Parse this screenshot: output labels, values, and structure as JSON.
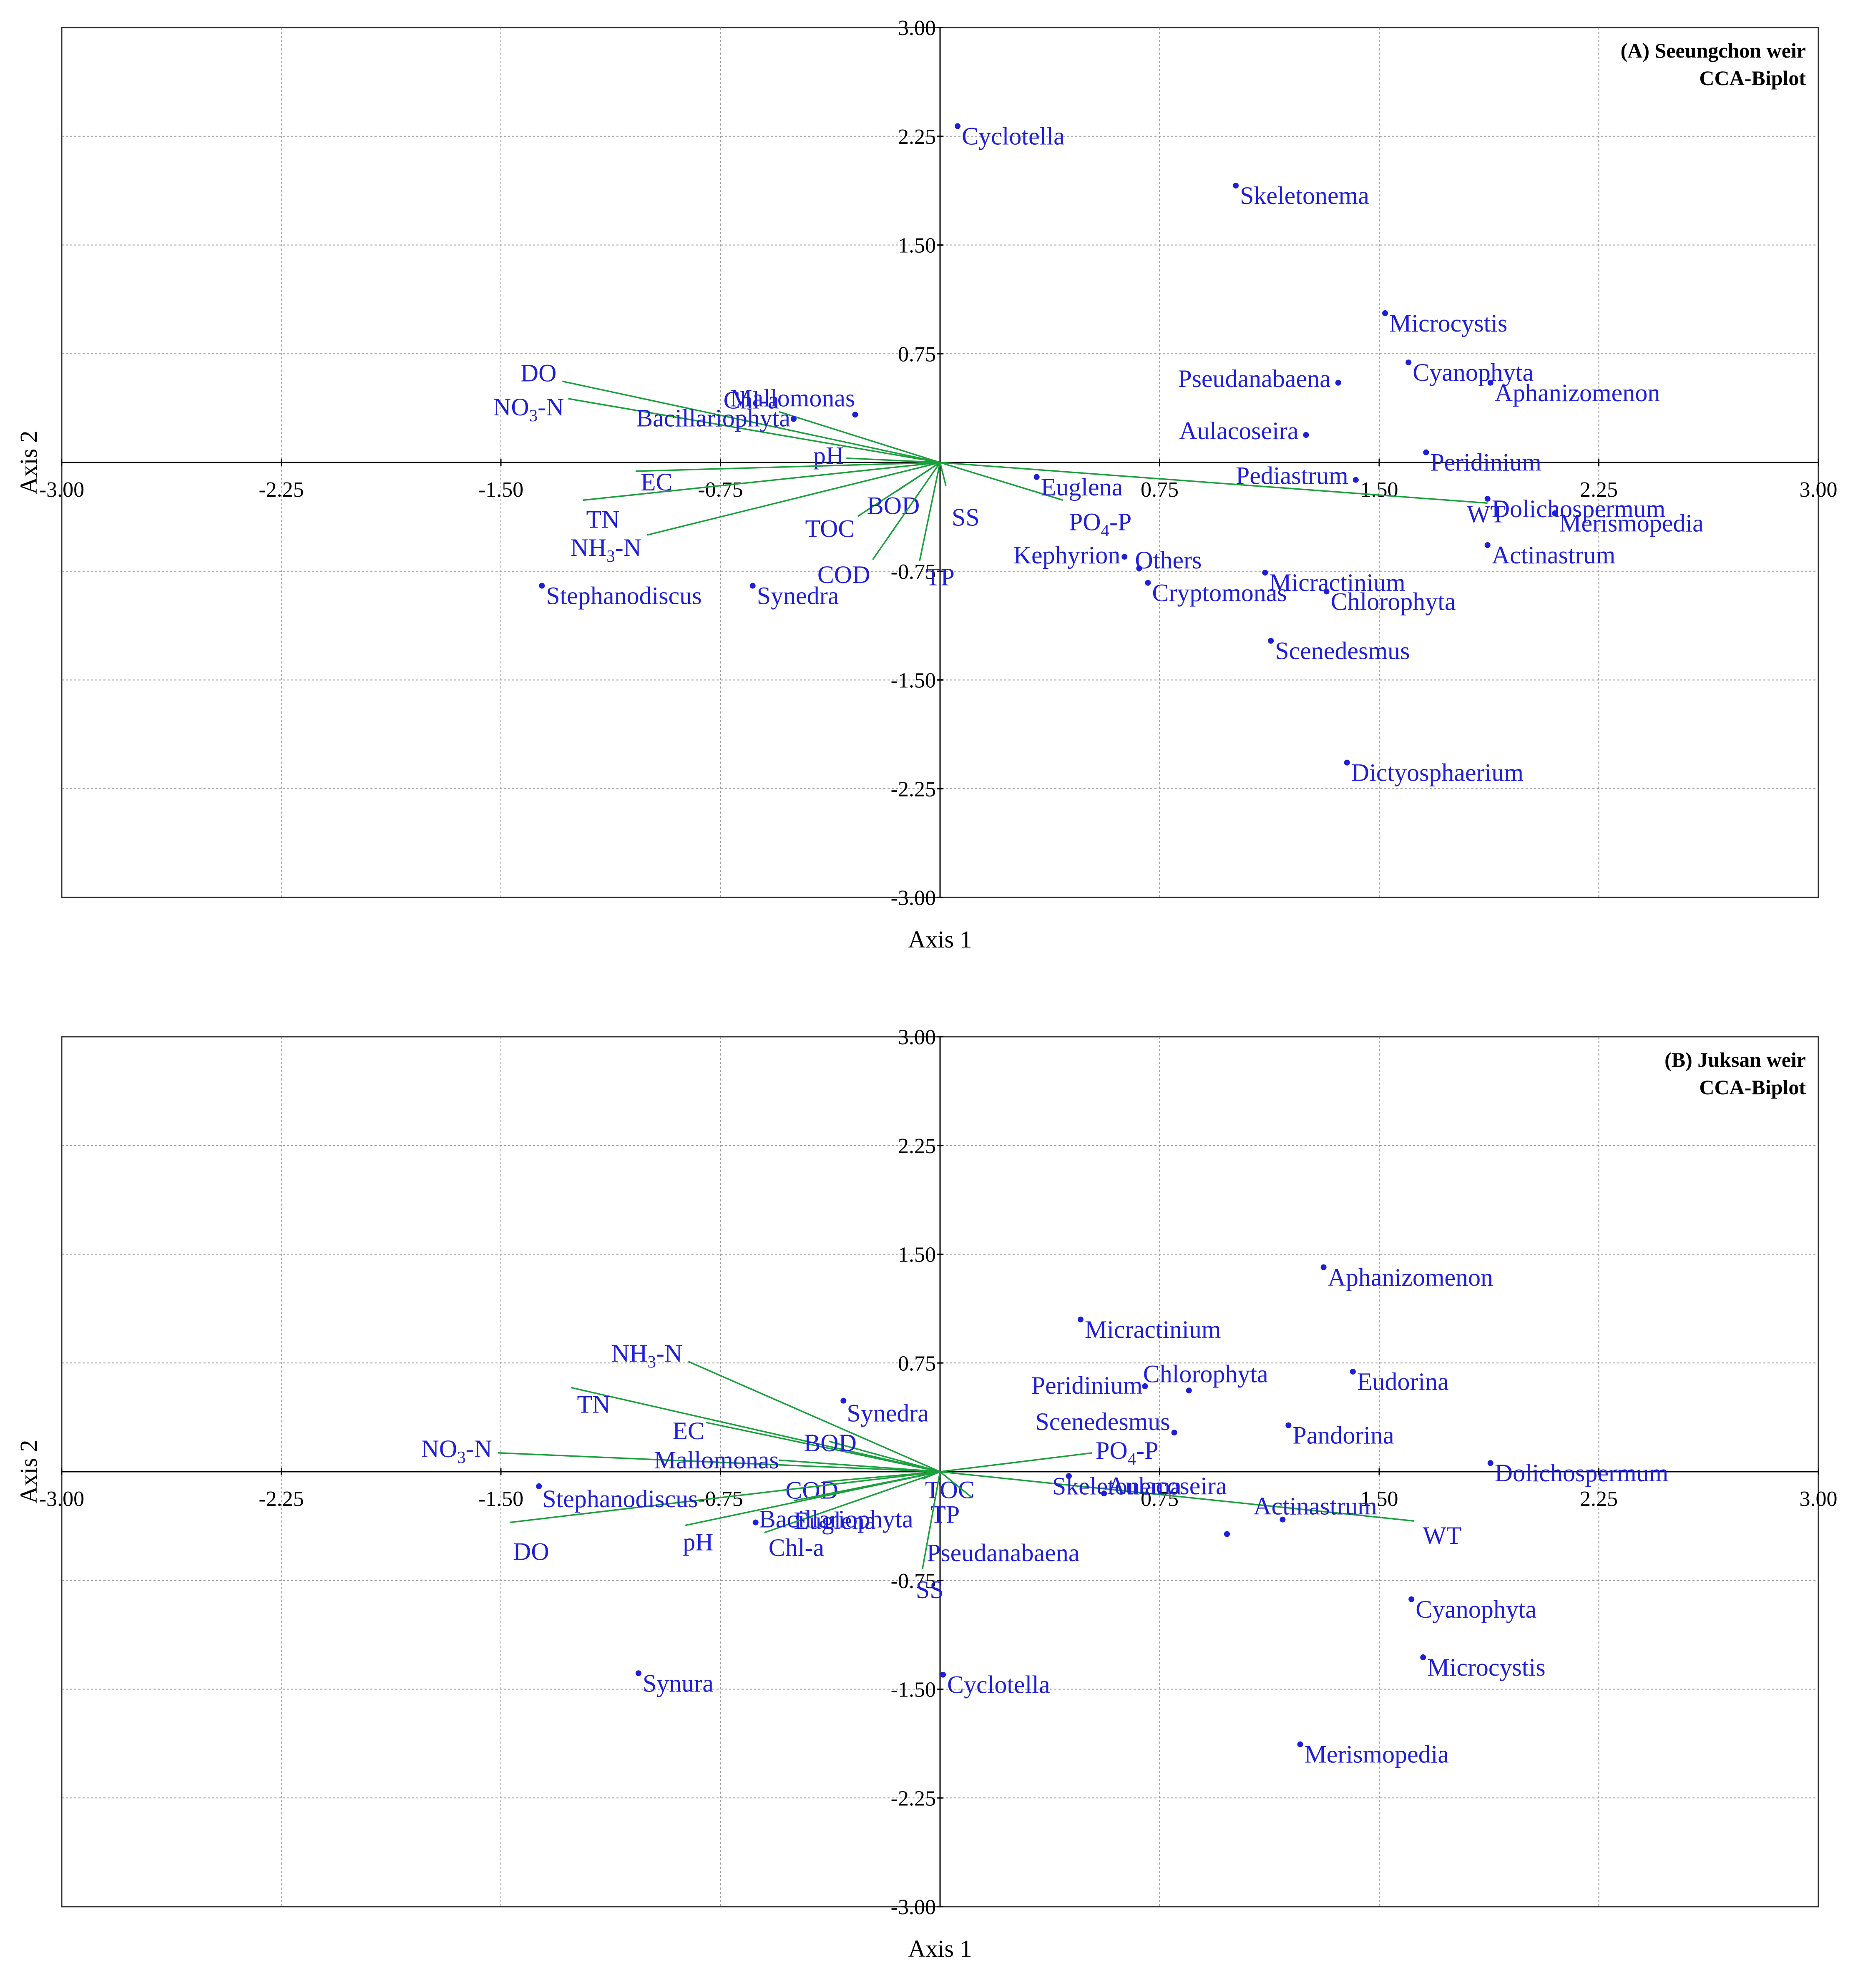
{
  "colors": {
    "label": "#1f1fd8",
    "arrow": "#1aa03c",
    "grid": "#999999",
    "axis": "#000000",
    "frame": "#333333"
  },
  "chart_data": [
    {
      "type": "scatter",
      "subtype": "cca-biplot",
      "title_line1": "(A) Seeungchon weir",
      "title_line2": "CCA-Biplot",
      "xlabel": "Axis 1",
      "ylabel": "Axis 2",
      "xlim": [
        -3.0,
        3.0
      ],
      "ylim": [
        -3.0,
        3.0
      ],
      "xticks": [
        -3.0,
        -2.25,
        -1.5,
        -0.75,
        0.75,
        1.5,
        2.25,
        3.0
      ],
      "yticks": [
        3.0,
        2.25,
        1.5,
        0.75,
        -0.75,
        -1.5,
        -2.25,
        -3.0
      ],
      "xtick_labels": [
        "-3.00",
        "-2.25",
        "-1.50",
        "-0.75",
        "0.75",
        "1.50",
        "2.25",
        "3.00"
      ],
      "ytick_labels": [
        "3.00",
        "2.25",
        "1.50",
        "0.75",
        "-0.75",
        "-1.50",
        "-2.25",
        "-3.00"
      ],
      "grid": true,
      "legend": "none",
      "arrows": [
        {
          "name": "DO",
          "x": -1.29,
          "y": 0.56
        },
        {
          "name": "NO3-N",
          "x": -1.27,
          "y": 0.44
        },
        {
          "name": "Chl-a",
          "x": -0.55,
          "y": 0.35
        },
        {
          "name": "pH",
          "x": -0.32,
          "y": 0.03
        },
        {
          "name": "EC",
          "x": -1.04,
          "y": -0.06
        },
        {
          "name": "TN",
          "x": -1.22,
          "y": -0.26
        },
        {
          "name": "NH3-N",
          "x": -1.0,
          "y": -0.5
        },
        {
          "name": "TOC",
          "x": -0.28,
          "y": -0.37
        },
        {
          "name": "BOD",
          "x": -0.15,
          "y": -0.2
        },
        {
          "name": "COD",
          "x": -0.23,
          "y": -0.67
        },
        {
          "name": "TP",
          "x": -0.07,
          "y": -0.68
        },
        {
          "name": "SS",
          "x": 0.02,
          "y": -0.16
        },
        {
          "name": "PO4-P",
          "x": 0.42,
          "y": -0.26
        },
        {
          "name": "WT",
          "x": 1.87,
          "y": -0.28
        }
      ],
      "points": [
        {
          "name": "Cyclotella",
          "x": 0.06,
          "y": 2.32
        },
        {
          "name": "Skeletonema",
          "x": 1.01,
          "y": 1.91
        },
        {
          "name": "Microcystis",
          "x": 1.52,
          "y": 1.03
        },
        {
          "name": "Cyanophyta",
          "x": 1.6,
          "y": 0.69
        },
        {
          "name": "Aphanizomenon",
          "x": 1.88,
          "y": 0.55
        },
        {
          "name": "Pseudanabaena",
          "x": 1.36,
          "y": 0.55
        },
        {
          "name": "Aulacoseira",
          "x": 1.25,
          "y": 0.19
        },
        {
          "name": "Peridinium",
          "x": 1.66,
          "y": 0.07
        },
        {
          "name": "Pediastrum",
          "x": 1.42,
          "y": -0.12
        },
        {
          "name": "Dolichospermum",
          "x": 1.87,
          "y": -0.25
        },
        {
          "name": "Merismopedia",
          "x": 2.1,
          "y": -0.35
        },
        {
          "name": "Actinastrum",
          "x": 1.87,
          "y": -0.57
        },
        {
          "name": "Euglena",
          "x": 0.33,
          "y": -0.1
        },
        {
          "name": "Others",
          "x": 0.68,
          "y": -0.73
        },
        {
          "name": "Kephyrion",
          "x": 0.63,
          "y": -0.65
        },
        {
          "name": "Cryptomonas",
          "x": 0.71,
          "y": -0.83
        },
        {
          "name": "Micractinium",
          "x": 1.11,
          "y": -0.76
        },
        {
          "name": "Chlorophyta",
          "x": 1.32,
          "y": -0.89
        },
        {
          "name": "Scenedesmus",
          "x": 1.13,
          "y": -1.23
        },
        {
          "name": "Dictyosphaerium",
          "x": 1.39,
          "y": -2.07
        },
        {
          "name": "Mallomonas",
          "x": -0.29,
          "y": 0.33
        },
        {
          "name": "Bacillariophyta",
          "x": -0.5,
          "y": 0.3
        },
        {
          "name": "Stephanodiscus",
          "x": -1.36,
          "y": -0.85
        },
        {
          "name": "Synedra",
          "x": -0.64,
          "y": -0.85
        }
      ]
    },
    {
      "type": "scatter",
      "subtype": "cca-biplot",
      "title_line1": "(B) Juksan weir",
      "title_line2": "CCA-Biplot",
      "xlabel": "Axis 1",
      "ylabel": "Axis 2",
      "xlim": [
        -3.0,
        3.0
      ],
      "ylim": [
        -3.0,
        3.0
      ],
      "xticks": [
        -3.0,
        -2.25,
        -1.5,
        -0.75,
        0.75,
        1.5,
        2.25,
        3.0
      ],
      "yticks": [
        3.0,
        2.25,
        1.5,
        0.75,
        -0.75,
        -1.5,
        -2.25,
        -3.0
      ],
      "xtick_labels": [
        "-3.00",
        "-2.25",
        "-1.50",
        "-0.75",
        "0.75",
        "1.50",
        "2.25",
        "3.00"
      ],
      "ytick_labels": [
        "3.00",
        "2.25",
        "1.50",
        "0.75",
        "-0.75",
        "-1.50",
        "-2.25",
        "-3.00"
      ],
      "grid": true,
      "legend": "none",
      "arrows": [
        {
          "name": "NH3-N",
          "x": -0.86,
          "y": 0.76
        },
        {
          "name": "TN",
          "x": -1.26,
          "y": 0.58
        },
        {
          "name": "EC",
          "x": -0.8,
          "y": 0.34
        },
        {
          "name": "BOD",
          "x": -0.38,
          "y": 0.21
        },
        {
          "name": "NO3-N",
          "x": -1.51,
          "y": 0.13
        },
        {
          "name": "Mallomonas",
          "x": -0.55,
          "y": 0.08
        },
        {
          "name": "COD",
          "x": -0.4,
          "y": -0.07
        },
        {
          "name": "TOC",
          "x": -0.06,
          "y": -0.05
        },
        {
          "name": "Euglena",
          "x": -0.5,
          "y": -0.2
        },
        {
          "name": "DO",
          "x": -1.47,
          "y": -0.35
        },
        {
          "name": "pH",
          "x": -0.87,
          "y": -0.37
        },
        {
          "name": "Chl-a",
          "x": -0.6,
          "y": -0.42
        },
        {
          "name": "TP",
          "x": 0.11,
          "y": -0.18
        },
        {
          "name": "SS",
          "x": -0.06,
          "y": -0.67
        },
        {
          "name": "PO4-P",
          "x": 0.52,
          "y": 0.13
        },
        {
          "name": "WT",
          "x": 1.62,
          "y": -0.34
        }
      ],
      "points": [
        {
          "name": "Aphanizomenon",
          "x": 1.31,
          "y": 1.41
        },
        {
          "name": "Micractinium",
          "x": 0.48,
          "y": 1.05
        },
        {
          "name": "Chlorophyta",
          "x": 0.85,
          "y": 0.56
        },
        {
          "name": "Peridinium",
          "x": 0.7,
          "y": 0.59
        },
        {
          "name": "Eudorina",
          "x": 1.41,
          "y": 0.69
        },
        {
          "name": "Scenedesmus",
          "x": 0.8,
          "y": 0.27
        },
        {
          "name": "Pandorina",
          "x": 1.19,
          "y": 0.32
        },
        {
          "name": "Dolichospermum",
          "x": 1.88,
          "y": 0.06
        },
        {
          "name": "Skeletonema",
          "x": 0.44,
          "y": -0.03
        },
        {
          "name": "Aulacoseira",
          "x": 0.56,
          "y": -0.15
        },
        {
          "name": "Actinastrum",
          "x": 1.17,
          "y": -0.33
        },
        {
          "name": "Pseudanabaena",
          "x": 0.98,
          "y": -0.43
        },
        {
          "name": "Cyanophyta",
          "x": 1.61,
          "y": -0.88
        },
        {
          "name": "Microcystis",
          "x": 1.65,
          "y": -1.28
        },
        {
          "name": "Merismopedia",
          "x": 1.23,
          "y": -1.88
        },
        {
          "name": "Cyclotella",
          "x": 0.01,
          "y": -1.4
        },
        {
          "name": "Synedra",
          "x": -0.33,
          "y": 0.49
        },
        {
          "name": "Bacillariophyta",
          "x": -0.63,
          "y": -0.35
        },
        {
          "name": "Stephanodiscus",
          "x": -1.37,
          "y": -0.1
        },
        {
          "name": "Synura",
          "x": -1.03,
          "y": -1.39
        }
      ]
    }
  ]
}
